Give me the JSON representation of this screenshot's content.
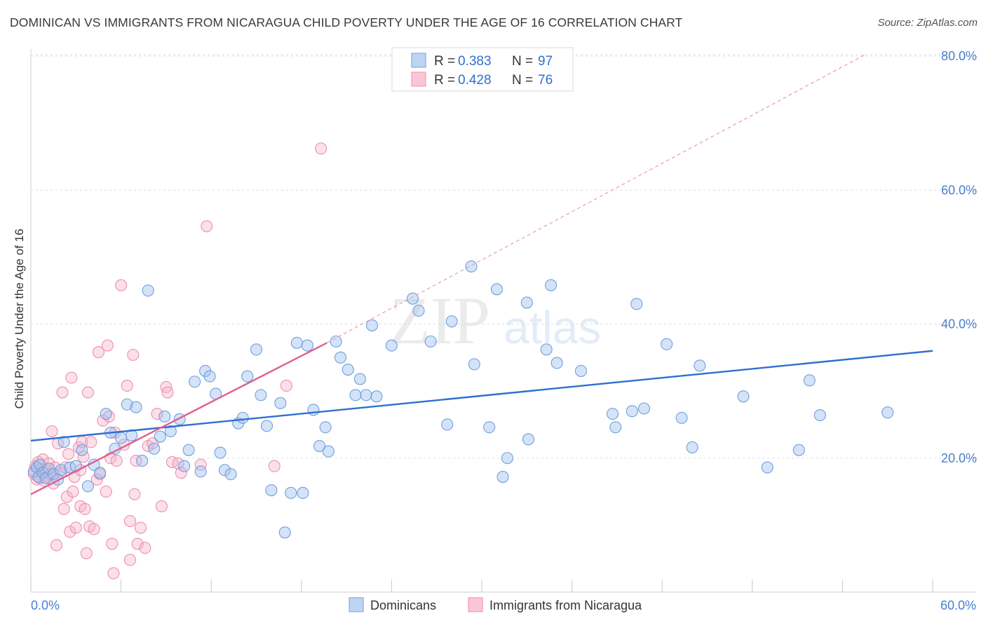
{
  "title": "DOMINICAN VS IMMIGRANTS FROM NICARAGUA CHILD POVERTY UNDER THE AGE OF 16 CORRELATION CHART",
  "source": "Source: ZipAtlas.com",
  "watermark": {
    "part1": "ZIP",
    "part2": "atlas"
  },
  "colors": {
    "blue": "#6f9fe0",
    "blue_line": "#2e6fcf",
    "pink": "#ee8fb0",
    "pink_line": "#e0608e",
    "tick": "#4a7ecf"
  },
  "chart_data": {
    "type": "scatter",
    "ylabel": "Child Poverty Under the Age of 16",
    "xlim": [
      0,
      60
    ],
    "ylim": [
      0,
      80
    ],
    "x_tick_labels": [
      "0.0%",
      "60.0%"
    ],
    "y_ticks": [
      {
        "value": 20,
        "label": "20.0%"
      },
      {
        "value": 40,
        "label": "40.0%"
      },
      {
        "value": 60,
        "label": "60.0%"
      },
      {
        "value": 80,
        "label": "80.0%"
      }
    ],
    "legend": {
      "rows": [
        {
          "r_label": "R = ",
          "r_value": "0.383",
          "n_label": "N = ",
          "n_value": "97"
        },
        {
          "r_label": "R = ",
          "r_value": "0.428",
          "n_label": "N = ",
          "n_value": "76"
        }
      ]
    },
    "series": [
      {
        "name": "Dominicans",
        "trend": {
          "x1": 0,
          "y1": 22.6,
          "x2": 60,
          "y2": 36.0
        },
        "points": [
          [
            0.2,
            18.0
          ],
          [
            0.4,
            18.6
          ],
          [
            0.5,
            17.2
          ],
          [
            0.6,
            19.0
          ],
          [
            0.8,
            17.8
          ],
          [
            1.0,
            17.0
          ],
          [
            1.2,
            18.4
          ],
          [
            1.5,
            17.6
          ],
          [
            1.8,
            16.8
          ],
          [
            2.0,
            18.2
          ],
          [
            2.2,
            22.4
          ],
          [
            2.6,
            18.6
          ],
          [
            3.0,
            18.8
          ],
          [
            3.4,
            21.2
          ],
          [
            3.8,
            15.8
          ],
          [
            4.2,
            19.0
          ],
          [
            4.6,
            17.8
          ],
          [
            5.0,
            26.6
          ],
          [
            5.3,
            23.8
          ],
          [
            5.6,
            21.4
          ],
          [
            6.0,
            23.0
          ],
          [
            6.4,
            28.0
          ],
          [
            6.7,
            23.4
          ],
          [
            7.0,
            27.6
          ],
          [
            7.4,
            19.6
          ],
          [
            7.8,
            45.0
          ],
          [
            8.2,
            21.4
          ],
          [
            8.6,
            23.2
          ],
          [
            8.9,
            26.2
          ],
          [
            9.3,
            24.0
          ],
          [
            9.9,
            25.8
          ],
          [
            10.2,
            18.8
          ],
          [
            10.5,
            21.2
          ],
          [
            10.9,
            31.4
          ],
          [
            11.3,
            18.0
          ],
          [
            11.6,
            33.0
          ],
          [
            11.9,
            32.2
          ],
          [
            12.3,
            29.6
          ],
          [
            12.6,
            20.8
          ],
          [
            12.9,
            18.2
          ],
          [
            13.3,
            17.6
          ],
          [
            13.8,
            25.2
          ],
          [
            14.1,
            26.0
          ],
          [
            14.4,
            32.2
          ],
          [
            15.0,
            36.2
          ],
          [
            15.3,
            29.4
          ],
          [
            15.7,
            24.8
          ],
          [
            16.0,
            15.2
          ],
          [
            16.6,
            28.2
          ],
          [
            16.9,
            8.9
          ],
          [
            17.3,
            14.8
          ],
          [
            17.7,
            37.2
          ],
          [
            18.1,
            14.8
          ],
          [
            18.4,
            36.8
          ],
          [
            18.8,
            27.2
          ],
          [
            19.2,
            21.8
          ],
          [
            19.6,
            24.6
          ],
          [
            19.8,
            21.0
          ],
          [
            20.3,
            37.4
          ],
          [
            20.6,
            35.0
          ],
          [
            21.1,
            33.2
          ],
          [
            21.6,
            29.4
          ],
          [
            21.9,
            31.8
          ],
          [
            22.3,
            29.4
          ],
          [
            22.7,
            39.8
          ],
          [
            23.0,
            29.2
          ],
          [
            24.0,
            36.8
          ],
          [
            25.4,
            43.8
          ],
          [
            25.8,
            42.0
          ],
          [
            26.6,
            37.4
          ],
          [
            27.7,
            25.0
          ],
          [
            28.0,
            40.4
          ],
          [
            29.3,
            48.6
          ],
          [
            29.5,
            34.0
          ],
          [
            30.5,
            24.6
          ],
          [
            31.0,
            45.2
          ],
          [
            31.4,
            17.2
          ],
          [
            31.7,
            20.0
          ],
          [
            33.0,
            43.2
          ],
          [
            33.1,
            22.8
          ],
          [
            34.3,
            36.2
          ],
          [
            34.6,
            45.8
          ],
          [
            35.0,
            34.2
          ],
          [
            36.6,
            33.0
          ],
          [
            38.7,
            26.6
          ],
          [
            38.9,
            24.6
          ],
          [
            40.0,
            27.0
          ],
          [
            40.3,
            43.0
          ],
          [
            40.8,
            27.4
          ],
          [
            42.3,
            37.0
          ],
          [
            43.3,
            26.0
          ],
          [
            44.0,
            21.6
          ],
          [
            44.5,
            33.8
          ],
          [
            47.4,
            29.2
          ],
          [
            49.0,
            18.6
          ],
          [
            51.1,
            21.2
          ],
          [
            51.8,
            31.6
          ],
          [
            52.5,
            26.4
          ],
          [
            57.0,
            26.8
          ]
        ]
      },
      {
        "name": "Immigrants from Nicaragua",
        "trend": {
          "x1": 0,
          "y1": 14.6,
          "x2": 19.7,
          "y2": 37.2
        },
        "trend_extension": {
          "x1": 19.7,
          "y1": 37.2,
          "x2": 55.5,
          "y2": 80.2
        },
        "points": [
          [
            0.2,
            17.6
          ],
          [
            0.3,
            18.8
          ],
          [
            0.4,
            16.8
          ],
          [
            0.5,
            19.4
          ],
          [
            0.6,
            17.0
          ],
          [
            0.7,
            18.4
          ],
          [
            0.8,
            19.8
          ],
          [
            0.9,
            16.6
          ],
          [
            1.0,
            18.2
          ],
          [
            1.1,
            17.2
          ],
          [
            1.2,
            19.2
          ],
          [
            1.3,
            17.6
          ],
          [
            1.4,
            24.0
          ],
          [
            1.5,
            16.2
          ],
          [
            1.6,
            18.6
          ],
          [
            1.7,
            7.0
          ],
          [
            1.8,
            22.2
          ],
          [
            2.0,
            17.8
          ],
          [
            2.1,
            29.8
          ],
          [
            2.2,
            12.4
          ],
          [
            2.3,
            18.6
          ],
          [
            2.4,
            14.2
          ],
          [
            2.5,
            20.6
          ],
          [
            2.6,
            9.0
          ],
          [
            2.7,
            32.0
          ],
          [
            2.8,
            15.0
          ],
          [
            2.9,
            17.2
          ],
          [
            3.0,
            9.6
          ],
          [
            3.2,
            21.6
          ],
          [
            3.3,
            12.8
          ],
          [
            3.4,
            22.4
          ],
          [
            3.5,
            20.2
          ],
          [
            3.6,
            12.4
          ],
          [
            3.7,
            5.8
          ],
          [
            3.8,
            29.8
          ],
          [
            3.9,
            9.8
          ],
          [
            4.0,
            22.4
          ],
          [
            4.2,
            9.4
          ],
          [
            4.4,
            16.8
          ],
          [
            4.5,
            35.8
          ],
          [
            4.6,
            17.6
          ],
          [
            4.8,
            25.6
          ],
          [
            5.0,
            15.0
          ],
          [
            5.1,
            36.8
          ],
          [
            5.2,
            26.2
          ],
          [
            5.3,
            20.0
          ],
          [
            5.4,
            7.2
          ],
          [
            5.5,
            2.8
          ],
          [
            5.6,
            23.8
          ],
          [
            5.7,
            19.6
          ],
          [
            6.0,
            45.8
          ],
          [
            6.2,
            22.0
          ],
          [
            6.4,
            30.8
          ],
          [
            6.6,
            10.6
          ],
          [
            6.6,
            4.8
          ],
          [
            6.8,
            35.4
          ],
          [
            6.9,
            14.6
          ],
          [
            7.1,
            7.2
          ],
          [
            7.3,
            9.6
          ],
          [
            7.6,
            6.6
          ],
          [
            7.8,
            21.8
          ],
          [
            8.1,
            22.2
          ],
          [
            8.4,
            26.6
          ],
          [
            8.7,
            12.8
          ],
          [
            9.0,
            30.6
          ],
          [
            9.1,
            29.8
          ],
          [
            9.4,
            19.4
          ],
          [
            9.8,
            19.2
          ],
          [
            10.0,
            17.8
          ],
          [
            11.3,
            19.0
          ],
          [
            11.7,
            54.6
          ],
          [
            16.2,
            18.8
          ],
          [
            17.0,
            30.8
          ],
          [
            19.3,
            66.2
          ],
          [
            7.0,
            19.6
          ],
          [
            3.3,
            18.2
          ]
        ]
      }
    ]
  },
  "bottom_legend": [
    {
      "label": "Dominicans"
    },
    {
      "label": "Immigrants from Nicaragua"
    }
  ]
}
